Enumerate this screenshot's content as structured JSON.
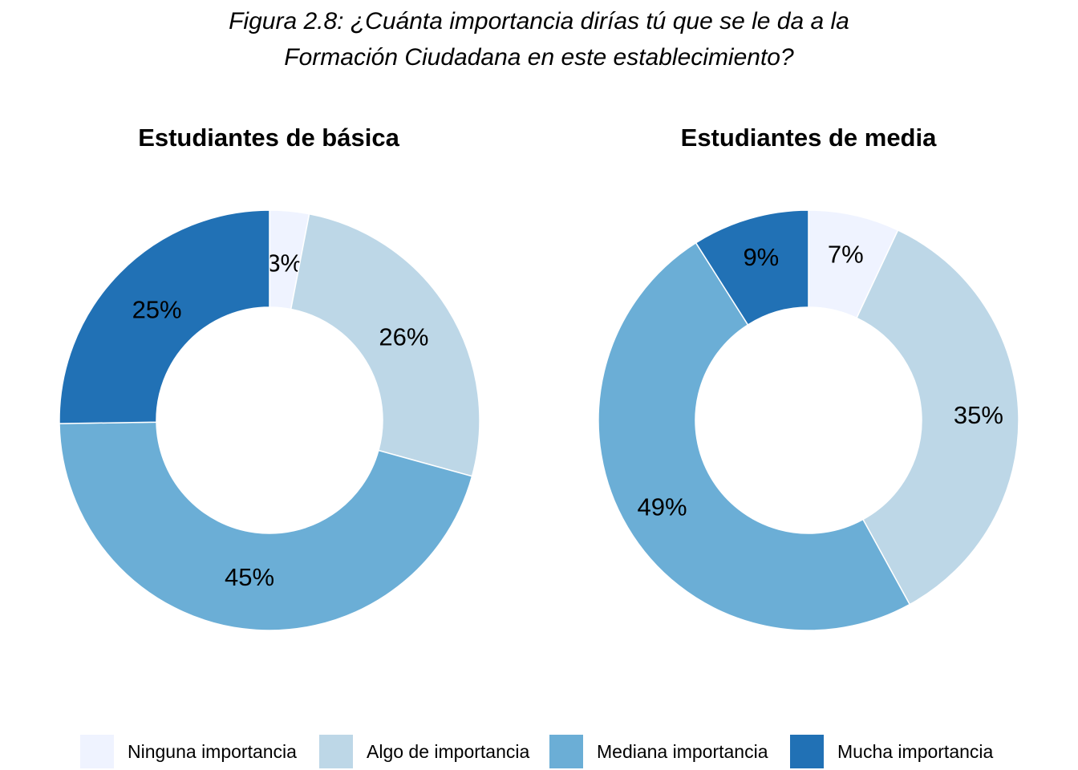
{
  "figure": {
    "title_line1": "Figura 2.8: ¿Cuánta importancia dirías tú que se le da a la",
    "title_line2": "Formación Ciudadana en este establecimiento?"
  },
  "legend": {
    "placement": "bottom",
    "items": [
      {
        "label": "Ninguna importancia",
        "color": "#eff3ff"
      },
      {
        "label": "Algo de importancia",
        "color": "#bdd7e7"
      },
      {
        "label": "Mediana importancia",
        "color": "#6baed6"
      },
      {
        "label": "Mucha importancia",
        "color": "#2171b5"
      }
    ]
  },
  "chart_data": [
    {
      "type": "pie",
      "donut": true,
      "title": "Estudiantes de básica",
      "categories": [
        "Ninguna importancia",
        "Algo de importancia",
        "Mediana importancia",
        "Mucha importancia"
      ],
      "values": [
        3,
        26,
        45,
        25
      ],
      "labels": [
        "3%",
        "26%",
        "45%",
        "25%"
      ],
      "colors": [
        "#eff3ff",
        "#bdd7e7",
        "#6baed6",
        "#2171b5"
      ],
      "start": "top",
      "direction": "clockwise"
    },
    {
      "type": "pie",
      "donut": true,
      "title": "Estudiantes de media",
      "categories": [
        "Ninguna importancia",
        "Algo de importancia",
        "Mediana importancia",
        "Mucha importancia"
      ],
      "values": [
        7,
        35,
        49,
        9
      ],
      "labels": [
        "7%",
        "35%",
        "49%",
        "9%"
      ],
      "colors": [
        "#eff3ff",
        "#bdd7e7",
        "#6baed6",
        "#2171b5"
      ],
      "start": "top",
      "direction": "clockwise"
    }
  ]
}
